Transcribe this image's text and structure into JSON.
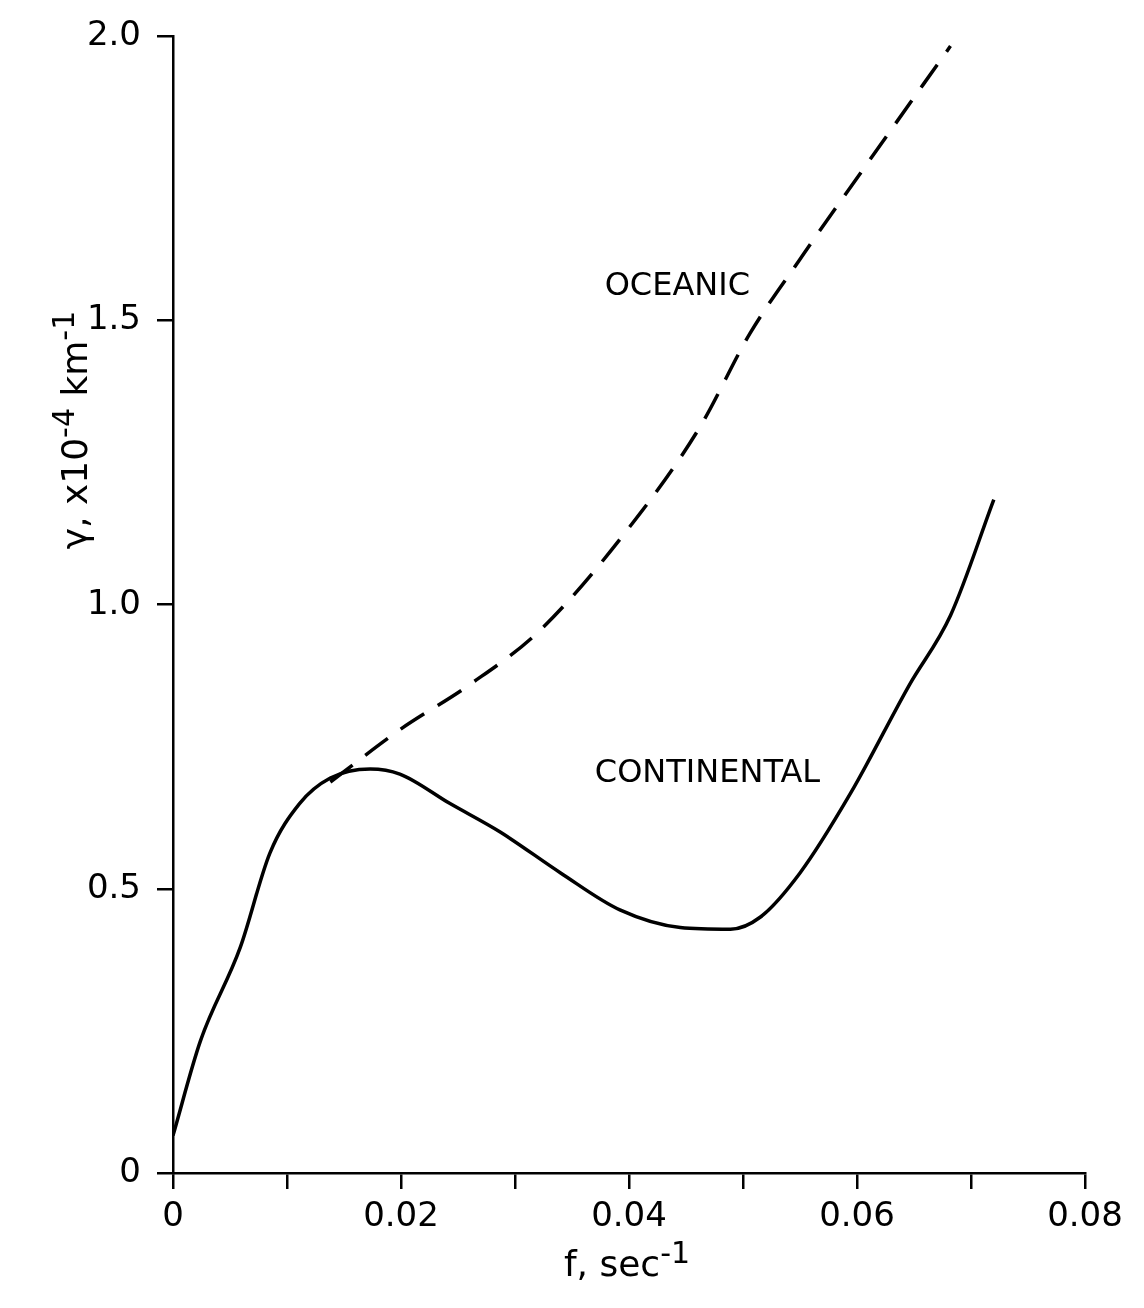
{
  "chart_data": {
    "type": "line",
    "xlabel": "f, sec$^{-1}$",
    "ylabel": "γ, x10$^{-4}$ km$^{-1}$",
    "xlim": [
      0,
      0.08
    ],
    "ylim": [
      0,
      2.0
    ],
    "xticks": [
      {
        "value": 0,
        "label": "0"
      },
      {
        "value": 0.01,
        "label": null
      },
      {
        "value": 0.02,
        "label": "0.02"
      },
      {
        "value": 0.03,
        "label": null
      },
      {
        "value": 0.04,
        "label": "0.04"
      },
      {
        "value": 0.05,
        "label": null
      },
      {
        "value": 0.06,
        "label": "0.06"
      },
      {
        "value": 0.07,
        "label": null
      },
      {
        "value": 0.08,
        "label": "0.08"
      }
    ],
    "yticks": [
      {
        "value": 0,
        "label": "0"
      },
      {
        "value": 0.5,
        "label": "0.5"
      },
      {
        "value": 1.0,
        "label": "1.0"
      },
      {
        "value": 1.5,
        "label": "1.5"
      },
      {
        "value": 2.0,
        "label": "2.0"
      }
    ],
    "grid": false,
    "legend": false,
    "marker": "none",
    "series": [
      {
        "name": "CONTINENTAL",
        "color": "#000000",
        "line_style": "solid",
        "x": [
          0,
          0.0024,
          0.0059,
          0.0085,
          0.0111,
          0.0138,
          0.0173,
          0.0199,
          0.0243,
          0.0287,
          0.034,
          0.0392,
          0.0445,
          0.0489,
          0.0515,
          0.055,
          0.0594,
          0.0646,
          0.0682,
          0.072
        ],
        "values": [
          0.066,
          0.232,
          0.397,
          0.563,
          0.65,
          0.695,
          0.711,
          0.702,
          0.65,
          0.6,
          0.528,
          0.463,
          0.432,
          0.429,
          0.45,
          0.528,
          0.667,
          0.859,
          0.981,
          1.185
        ]
      },
      {
        "name": "OCEANIC",
        "color": "#000000",
        "line_style": "dashed",
        "x": [
          0.0138,
          0.0199,
          0.026,
          0.0322,
          0.0401,
          0.0462,
          0.0506,
          0.055,
          0.0611,
          0.0682
        ],
        "values": [
          0.688,
          0.78,
          0.859,
          0.955,
          1.138,
          1.312,
          1.477,
          1.608,
          1.782,
          1.983
        ]
      }
    ]
  }
}
